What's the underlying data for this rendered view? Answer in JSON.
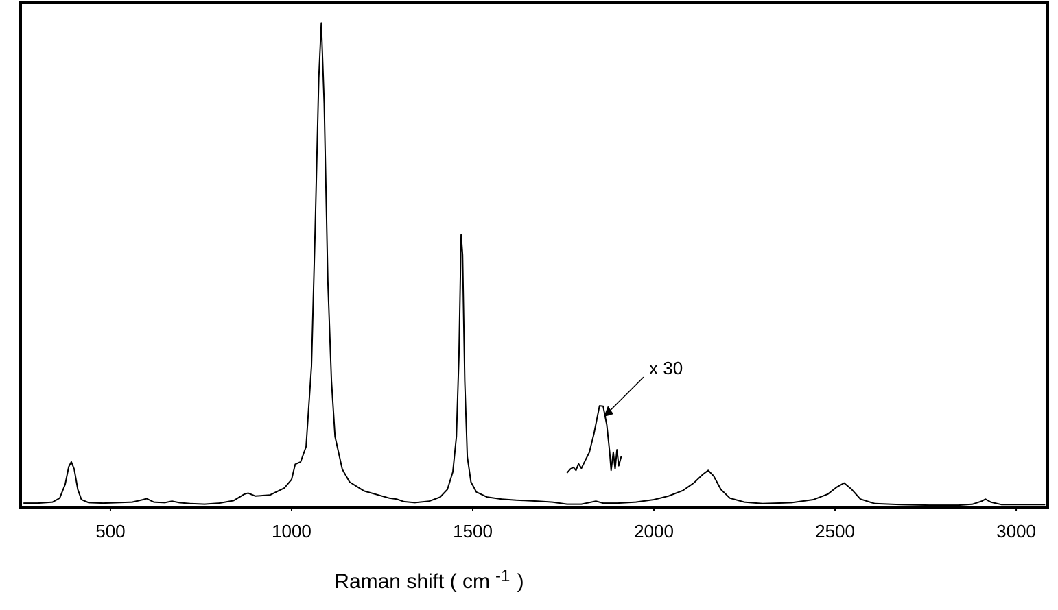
{
  "chart_data": {
    "type": "line",
    "xlabel": {
      "text": "Raman shift ( cm",
      "superscript": "-1",
      "suffix": " )"
    },
    "xlim": [
      252,
      3087
    ],
    "xticks": [
      500,
      1000,
      1500,
      2000,
      2500,
      3000
    ],
    "ylim": [
      0,
      100
    ],
    "grid": false,
    "series": [
      {
        "color": "#000000",
        "x": [
          260,
          300,
          340,
          360,
          375,
          385,
          392,
          400,
          410,
          420,
          440,
          480,
          520,
          560,
          590,
          600,
          620,
          650,
          670,
          690,
          720,
          760,
          800,
          840,
          870,
          880,
          900,
          940,
          980,
          1000,
          1010,
          1025,
          1040,
          1055,
          1065,
          1075,
          1082,
          1090,
          1100,
          1110,
          1120,
          1140,
          1160,
          1200,
          1240,
          1270,
          1290,
          1310,
          1340,
          1380,
          1410,
          1430,
          1445,
          1455,
          1462,
          1468,
          1472,
          1478,
          1485,
          1495,
          1510,
          1540,
          1580,
          1620,
          1680,
          1720,
          1760,
          1800,
          1840,
          1860,
          1900,
          1950,
          2000,
          2040,
          2080,
          2110,
          2135,
          2150,
          2165,
          2185,
          2210,
          2250,
          2300,
          2380,
          2440,
          2480,
          2505,
          2525,
          2545,
          2570,
          2610,
          2680,
          2760,
          2840,
          2880,
          2905,
          2915,
          2930,
          2960,
          3020,
          3080
        ],
        "values": [
          0.8,
          0.8,
          1.0,
          1.8,
          4.5,
          8.0,
          9.0,
          7.5,
          3.5,
          1.5,
          0.9,
          0.8,
          0.9,
          1.0,
          1.5,
          1.7,
          1.0,
          0.9,
          1.2,
          0.9,
          0.7,
          0.6,
          0.8,
          1.3,
          2.6,
          2.8,
          2.2,
          2.4,
          3.8,
          5.5,
          8.5,
          9.0,
          12,
          28,
          55,
          85,
          96,
          80,
          45,
          25,
          14,
          7.5,
          5.0,
          3.2,
          2.4,
          1.8,
          1.6,
          1.1,
          0.9,
          1.2,
          2.0,
          3.5,
          7,
          14,
          30,
          54,
          50,
          25,
          10,
          5,
          3,
          2.0,
          1.6,
          1.4,
          1.2,
          1.0,
          0.6,
          0.6,
          1.2,
          0.8,
          0.8,
          1.0,
          1.5,
          2.2,
          3.3,
          4.8,
          6.5,
          7.3,
          6.2,
          3.5,
          1.8,
          1.0,
          0.7,
          0.9,
          1.5,
          2.6,
          4.0,
          4.8,
          3.6,
          1.6,
          0.7,
          0.5,
          0.4,
          0.4,
          0.6,
          1.2,
          1.6,
          1.0,
          0.5,
          0.5,
          0.5
        ]
      },
      {
        "color": "#000000",
        "x": [
          1760,
          1770,
          1778,
          1785,
          1792,
          1800,
          1810,
          1822,
          1835,
          1850,
          1860,
          1870,
          1878,
          1882,
          1888,
          1893,
          1898,
          1903,
          1910
        ],
        "values": [
          6.8,
          7.6,
          7.9,
          7.3,
          8.6,
          7.7,
          9.2,
          10.9,
          14.7,
          20.1,
          20.0,
          16.3,
          10.9,
          7.3,
          10.9,
          7.6,
          11.4,
          8.2,
          10.1
        ]
      }
    ],
    "annotations": [
      {
        "text": "x 30",
        "x": 1858,
        "y": 19
      }
    ]
  }
}
